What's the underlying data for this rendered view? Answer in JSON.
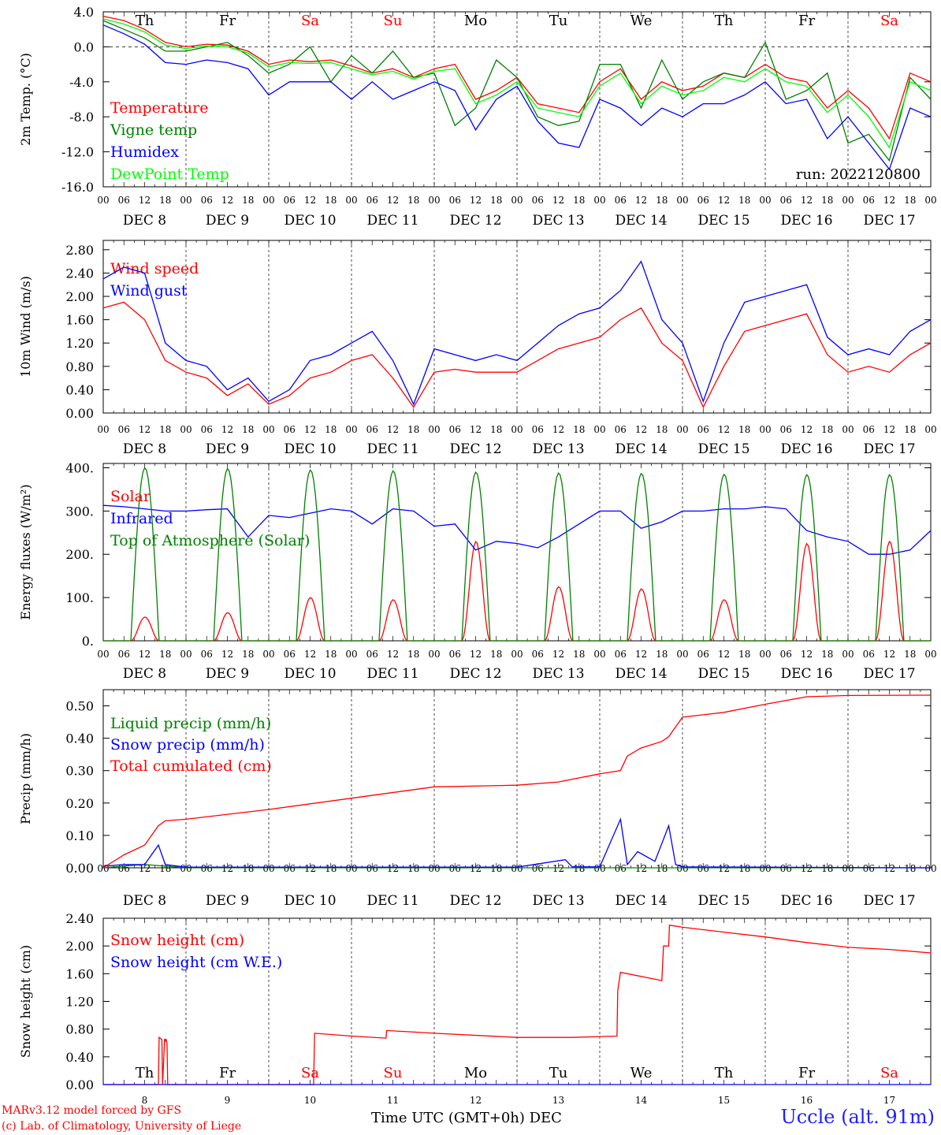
{
  "footer": {
    "model_line": "MARv3.12 model forced by GFS",
    "lab_line": "(c) Lab. of Climatology, University of Liege",
    "station": "Uccle (alt. 91m)",
    "xlabel": "Time UTC (GMT+0h) DEC",
    "run": "run: 2022120800"
  },
  "colors": {
    "red": "#ff0000",
    "green": "#008000",
    "blue": "#0000ff",
    "lime": "#00ff00",
    "weekend": "#ff0000",
    "weekday": "#000000"
  },
  "chart_data": [
    {
      "type": "line",
      "ylabel": "2m Temp. (°C)",
      "ylim": [
        -16,
        4
      ],
      "yticks": [
        "4.0",
        "0.0",
        "-4.0",
        "-8.0",
        "-12.0",
        "-16.0"
      ],
      "x_unit": "hours from DEC 8 00 UTC",
      "xlim": [
        0,
        240
      ],
      "day_labels": [
        "DEC 8",
        "DEC 9",
        "DEC 10",
        "DEC 11",
        "DEC 12",
        "DEC 13",
        "DEC 14",
        "DEC 15",
        "DEC 16",
        "DEC 17"
      ],
      "hour_ticks": [
        "00",
        "06",
        "12",
        "18"
      ],
      "weekdays": [
        "Th",
        "Fr",
        "Sa",
        "Su",
        "Mo",
        "Tu",
        "We",
        "Th",
        "Fr",
        "Sa"
      ],
      "zero_line": true,
      "series": [
        {
          "name": "Temperature",
          "color": "#ff0000",
          "x": [
            0,
            6,
            12,
            18,
            24,
            30,
            36,
            42,
            48,
            54,
            60,
            66,
            72,
            78,
            84,
            90,
            96,
            102,
            108,
            114,
            120,
            126,
            132,
            138,
            144,
            150,
            156,
            162,
            168,
            174,
            180,
            186,
            192,
            198,
            204,
            210,
            216,
            222,
            228,
            234,
            240
          ],
          "values": [
            3.5,
            3,
            2,
            0.5,
            0,
            0.3,
            0.2,
            -0.5,
            -2,
            -1.5,
            -1.7,
            -1.5,
            -2.2,
            -3,
            -2.5,
            -3.5,
            -2.5,
            -2,
            -6,
            -5,
            -3.5,
            -6.5,
            -7,
            -7.5,
            -4,
            -2.5,
            -6,
            -4,
            -5,
            -4.5,
            -3,
            -3.5,
            -2,
            -3.5,
            -4,
            -7,
            -5,
            -7,
            -10.5,
            -3,
            -4
          ]
        },
        {
          "name": "Vigne temp",
          "color": "#008000",
          "x": [
            0,
            6,
            12,
            18,
            24,
            30,
            36,
            42,
            48,
            54,
            60,
            66,
            72,
            78,
            84,
            90,
            96,
            102,
            108,
            114,
            120,
            126,
            132,
            138,
            144,
            150,
            156,
            162,
            168,
            174,
            180,
            186,
            192,
            198,
            204,
            210,
            216,
            222,
            228,
            234,
            240
          ],
          "values": [
            3,
            2,
            1,
            -0.5,
            -0.5,
            0,
            0.5,
            -1,
            -3,
            -2,
            0,
            -4,
            -1,
            -3,
            -0.5,
            -3.5,
            -3,
            -9,
            -7,
            -1.5,
            -3.5,
            -8,
            -9,
            -8.5,
            -2,
            -2,
            -7,
            -1.5,
            -6,
            -4,
            -3,
            -3.5,
            0.5,
            -6,
            -5,
            -3,
            -11,
            -10,
            -13,
            -3.5,
            -6
          ]
        },
        {
          "name": "Humidex",
          "color": "#0000ff",
          "x": [
            0,
            6,
            12,
            18,
            24,
            30,
            36,
            42,
            48,
            54,
            60,
            66,
            72,
            78,
            84,
            90,
            96,
            102,
            108,
            114,
            120,
            126,
            132,
            138,
            144,
            150,
            156,
            162,
            168,
            174,
            180,
            186,
            192,
            198,
            204,
            210,
            216,
            222,
            228,
            234,
            240
          ],
          "values": [
            2.5,
            1.5,
            0.3,
            -1.8,
            -2,
            -1.5,
            -1.8,
            -2.5,
            -5.5,
            -4,
            -4,
            -4,
            -6,
            -4,
            -6,
            -5,
            -4,
            -5,
            -9.5,
            -6,
            -4.5,
            -8.5,
            -11,
            -11.5,
            -6,
            -7,
            -9,
            -7,
            -8,
            -6.5,
            -6.5,
            -5.5,
            -4,
            -6.5,
            -6,
            -10.5,
            -8,
            -11,
            -14,
            -7,
            -8
          ]
        },
        {
          "name": "DewPoint Temp",
          "color": "#00ff00",
          "x": [
            0,
            6,
            12,
            18,
            24,
            30,
            36,
            42,
            48,
            54,
            60,
            66,
            72,
            78,
            84,
            90,
            96,
            102,
            108,
            114,
            120,
            126,
            132,
            138,
            144,
            150,
            156,
            162,
            168,
            174,
            180,
            186,
            192,
            198,
            204,
            210,
            216,
            222,
            228,
            234,
            240
          ],
          "values": [
            3.2,
            2.6,
            1.7,
            0.2,
            -0.2,
            0.1,
            0,
            -0.7,
            -2.3,
            -1.8,
            -1.9,
            -1.8,
            -2.5,
            -3.2,
            -2.8,
            -3.7,
            -2.8,
            -2.5,
            -6.5,
            -5.5,
            -4,
            -7,
            -7.5,
            -8,
            -4.5,
            -3,
            -6.5,
            -4.5,
            -5.5,
            -5,
            -3.5,
            -4,
            -2.5,
            -4,
            -4.5,
            -7.5,
            -5.5,
            -8,
            -11.5,
            -4,
            -5
          ]
        }
      ],
      "annotation": "run: 2022120800"
    },
    {
      "type": "line",
      "ylabel": "10m Wind (m/s)",
      "ylim": [
        0,
        2.96
      ],
      "yticks": [
        "0.00",
        "0.40",
        "0.80",
        "1.20",
        "1.60",
        "2.00",
        "2.40",
        "2.80"
      ],
      "x_unit": "hours from DEC 8 00 UTC",
      "xlim": [
        0,
        240
      ],
      "day_labels": [
        "DEC 8",
        "DEC 9",
        "DEC 10",
        "DEC 11",
        "DEC 12",
        "DEC 13",
        "DEC 14",
        "DEC 15",
        "DEC 16",
        "DEC 17"
      ],
      "hour_ticks": [
        "00",
        "06",
        "12",
        "18"
      ],
      "series": [
        {
          "name": "Wind speed",
          "color": "#ff0000",
          "x": [
            0,
            6,
            12,
            18,
            24,
            30,
            36,
            42,
            48,
            54,
            60,
            66,
            72,
            78,
            84,
            90,
            96,
            102,
            108,
            114,
            120,
            126,
            132,
            138,
            144,
            150,
            156,
            162,
            168,
            174,
            180,
            186,
            192,
            198,
            204,
            210,
            216,
            222,
            228,
            234,
            240
          ],
          "values": [
            1.8,
            1.9,
            1.6,
            0.9,
            0.7,
            0.6,
            0.3,
            0.5,
            0.15,
            0.3,
            0.6,
            0.7,
            0.9,
            1,
            0.6,
            0.1,
            0.7,
            0.75,
            0.7,
            0.7,
            0.7,
            0.9,
            1.1,
            1.2,
            1.3,
            1.6,
            1.8,
            1.2,
            0.9,
            0.1,
            0.8,
            1.4,
            1.5,
            1.6,
            1.7,
            1,
            0.7,
            0.8,
            0.7,
            1,
            1.2
          ]
        },
        {
          "name": "Wind gust",
          "color": "#0000ff",
          "x": [
            0,
            6,
            12,
            18,
            24,
            30,
            36,
            42,
            48,
            54,
            60,
            66,
            72,
            78,
            84,
            90,
            96,
            102,
            108,
            114,
            120,
            126,
            132,
            138,
            144,
            150,
            156,
            162,
            168,
            174,
            180,
            186,
            192,
            198,
            204,
            210,
            216,
            222,
            228,
            234,
            240
          ],
          "values": [
            2.3,
            2.5,
            2.4,
            1.2,
            0.9,
            0.8,
            0.4,
            0.6,
            0.2,
            0.4,
            0.9,
            1,
            1.2,
            1.4,
            0.9,
            0.15,
            1.1,
            1,
            0.9,
            1,
            0.9,
            1.2,
            1.5,
            1.7,
            1.8,
            2.1,
            2.6,
            1.6,
            1.2,
            0.2,
            1.2,
            1.9,
            2,
            2.1,
            2.2,
            1.3,
            1,
            1.1,
            1,
            1.4,
            1.6
          ]
        }
      ]
    },
    {
      "type": "line",
      "ylabel": "Energy fluxes (W/m²)",
      "ylim": [
        0,
        410
      ],
      "yticks": [
        "0.",
        "100.",
        "200.",
        "300.",
        "400."
      ],
      "x_unit": "hours from DEC 8 00 UTC",
      "xlim": [
        0,
        240
      ],
      "day_labels": [
        "DEC 8",
        "DEC 9",
        "DEC 10",
        "DEC 11",
        "DEC 12",
        "DEC 13",
        "DEC 14",
        "DEC 15",
        "DEC 16",
        "DEC 17"
      ],
      "hour_ticks": [
        "00",
        "06",
        "12",
        "18"
      ],
      "series": [
        {
          "name": "Solar",
          "color": "#ff0000",
          "peaks": [
            55,
            65,
            100,
            95,
            230,
            125,
            120,
            95,
            225,
            230
          ]
        },
        {
          "name": "Infrared",
          "color": "#0000ff",
          "x": [
            0,
            6,
            12,
            18,
            24,
            30,
            36,
            42,
            48,
            54,
            60,
            66,
            72,
            78,
            84,
            90,
            96,
            102,
            108,
            114,
            120,
            126,
            132,
            138,
            144,
            150,
            156,
            162,
            168,
            174,
            180,
            186,
            192,
            198,
            204,
            210,
            216,
            222,
            228,
            234,
            240
          ],
          "values": [
            313,
            310,
            305,
            300,
            300,
            303,
            305,
            240,
            290,
            285,
            295,
            305,
            300,
            270,
            305,
            300,
            265,
            270,
            210,
            230,
            225,
            215,
            240,
            270,
            300,
            300,
            260,
            275,
            300,
            300,
            305,
            305,
            310,
            305,
            255,
            240,
            230,
            200,
            200,
            210,
            255
          ]
        },
        {
          "name": "Top of Atmosphere (Solar)",
          "color": "#008000",
          "peaks": [
            400,
            398,
            395,
            393,
            390,
            388,
            387,
            385,
            384,
            384
          ]
        }
      ],
      "daylight_hours": [
        8,
        16.2
      ]
    },
    {
      "type": "line",
      "ylabel": "Precip (mm/h)",
      "ylim": [
        0,
        0.55
      ],
      "yticks": [
        "0.00",
        "0.10",
        "0.20",
        "0.30",
        "0.40",
        "0.50"
      ],
      "x_unit": "hours from DEC 8 00 UTC",
      "xlim": [
        0,
        240
      ],
      "day_labels": [
        "DEC 8",
        "DEC 9",
        "DEC 10",
        "DEC 11",
        "DEC 12",
        "DEC 13",
        "DEC 14",
        "DEC 15",
        "DEC 16",
        "DEC 17"
      ],
      "hour_ticks": [
        "00",
        "06",
        "12",
        "18"
      ],
      "series": [
        {
          "name": "Liquid precip (mm/h)",
          "color": "#008000",
          "x": [
            0,
            6,
            12,
            18,
            24,
            60,
            120,
            240
          ],
          "values": [
            0,
            0.005,
            0.01,
            0.005,
            0,
            0,
            0,
            0
          ]
        },
        {
          "name": "Snow precip (mm/h)",
          "color": "#0000ff",
          "x": [
            0,
            6,
            12,
            16,
            18,
            24,
            48,
            72,
            96,
            120,
            134,
            136,
            144,
            150,
            152,
            155,
            160,
            164,
            166,
            168,
            192,
            240
          ],
          "values": [
            0.005,
            0.01,
            0.01,
            0.07,
            0.01,
            0.002,
            0.002,
            0.002,
            0.002,
            0.002,
            0.025,
            0.003,
            0.003,
            0.15,
            0.01,
            0.05,
            0.02,
            0.13,
            0.01,
            0.003,
            0.002,
            0
          ]
        },
        {
          "name": "Total cumulated (cm)",
          "color": "#ff0000",
          "x": [
            0,
            6,
            12,
            16,
            18,
            24,
            48,
            72,
            96,
            120,
            132,
            144,
            150,
            152,
            156,
            162,
            164,
            168,
            180,
            192,
            204,
            216,
            240
          ],
          "values": [
            0,
            0.04,
            0.07,
            0.13,
            0.145,
            0.15,
            0.18,
            0.215,
            0.25,
            0.255,
            0.265,
            0.29,
            0.3,
            0.345,
            0.37,
            0.39,
            0.405,
            0.465,
            0.48,
            0.505,
            0.528,
            0.532,
            0.533
          ]
        }
      ]
    },
    {
      "type": "line",
      "ylabel": "Snow height (cm)",
      "ylim": [
        0,
        2.4
      ],
      "yticks": [
        "0.00",
        "0.40",
        "0.80",
        "1.20",
        "1.60",
        "2.00",
        "2.40"
      ],
      "x_unit": "hours from DEC 8 00 UTC",
      "xlim": [
        0,
        240
      ],
      "xticks": [
        "8",
        "9",
        "10",
        "11",
        "12",
        "13",
        "14",
        "15",
        "16",
        "17"
      ],
      "weekdays": [
        "Th",
        "Fr",
        "Sa",
        "Su",
        "Mo",
        "Tu",
        "We",
        "Th",
        "Fr",
        "Sa"
      ],
      "series": [
        {
          "name": "Snow height (cm)",
          "color": "#ff0000",
          "x": [
            0,
            16,
            16.2,
            17,
            17.2,
            17.8,
            18,
            18.2,
            18.5,
            18.7,
            48,
            61,
            61.3,
            72,
            82,
            82.2,
            96,
            120,
            136,
            149,
            149.2,
            150,
            152,
            162,
            162.5,
            164,
            164.2,
            168,
            180,
            192,
            204,
            216,
            228,
            240
          ],
          "values": [
            0,
            0,
            0.68,
            0.65,
            0,
            0.66,
            0.62,
            0.66,
            0.6,
            0,
            0,
            0,
            0.74,
            0.7,
            0.67,
            0.78,
            0.74,
            0.68,
            0.68,
            0.7,
            1.35,
            1.62,
            1.6,
            1.5,
            2.0,
            2.0,
            2.3,
            2.27,
            2.2,
            2.13,
            2.05,
            1.98,
            1.95,
            1.9
          ]
        },
        {
          "name": "Snow height (cm W.E.)",
          "color": "#0000ff",
          "x": [
            0,
            240
          ],
          "values": [
            0,
            0
          ]
        }
      ]
    }
  ]
}
